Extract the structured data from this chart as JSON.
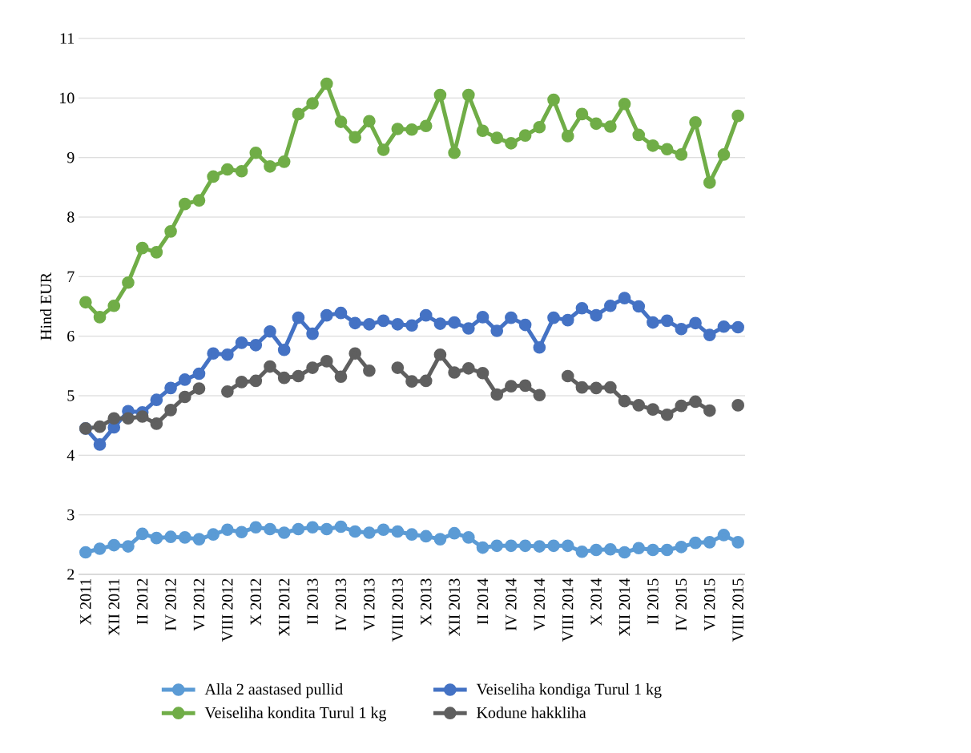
{
  "chart_data": {
    "type": "line",
    "ylabel": "Hind EUR",
    "categories": [
      "X 2011",
      null,
      "XII 2011",
      null,
      "II 2012",
      null,
      "IV 2012",
      null,
      "VI 2012",
      null,
      "VIII 2012",
      null,
      "X 2012",
      null,
      "XII 2012",
      null,
      "II 2013",
      null,
      "IV 2013",
      null,
      "VI 2013",
      null,
      "VIII 2013",
      null,
      "X 2013",
      null,
      "XII 2013",
      null,
      "II 2014",
      null,
      "IV 2014",
      null,
      "VI 2014",
      null,
      "VIII 2014",
      null,
      "X 2014",
      null,
      "XII 2014",
      null,
      "II 2015",
      null,
      "IV 2015",
      null,
      "VI 2015",
      null,
      "VIII 2015"
    ],
    "series": [
      {
        "name": "Alla 2 aastased pullid",
        "color": "#5b9bd5",
        "values": [
          2.37,
          2.43,
          2.49,
          2.47,
          2.68,
          2.61,
          2.63,
          2.62,
          2.59,
          2.67,
          2.75,
          2.71,
          2.79,
          2.76,
          2.7,
          2.76,
          2.79,
          2.76,
          2.8,
          2.72,
          2.7,
          2.75,
          2.72,
          2.67,
          2.64,
          2.59,
          2.69,
          2.62,
          2.45,
          2.48,
          2.48,
          2.48,
          2.47,
          2.48,
          2.48,
          2.38,
          2.41,
          2.42,
          2.37,
          2.44,
          2.41,
          2.41,
          2.46,
          2.53,
          2.54,
          2.66,
          2.54
        ]
      },
      {
        "name": "Veiseliha kondiga Turul 1 kg",
        "color": "#4472c4",
        "values": [
          4.45,
          4.18,
          4.47,
          4.74,
          4.72,
          4.93,
          5.13,
          5.27,
          5.37,
          5.71,
          5.69,
          5.89,
          5.85,
          6.08,
          5.77,
          6.31,
          6.04,
          6.35,
          6.39,
          6.22,
          6.2,
          6.26,
          6.2,
          6.18,
          6.35,
          6.21,
          6.23,
          6.13,
          6.32,
          6.09,
          6.31,
          6.19,
          5.81,
          6.31,
          6.27,
          6.47,
          6.35,
          6.51,
          6.64,
          6.5,
          6.23,
          6.26,
          6.12,
          6.22,
          6.02,
          6.16,
          6.15
        ]
      },
      {
        "name": "Veiseliha kondita Turul 1 kg",
        "color": "#70ad47",
        "values": [
          6.57,
          6.32,
          6.51,
          6.9,
          7.48,
          7.41,
          7.76,
          8.22,
          8.28,
          8.68,
          8.8,
          8.77,
          9.08,
          8.85,
          8.93,
          9.73,
          9.91,
          10.24,
          9.6,
          9.34,
          9.61,
          9.13,
          9.48,
          9.47,
          9.53,
          10.05,
          9.08,
          10.05,
          9.45,
          9.33,
          9.24,
          9.37,
          9.51,
          9.97,
          9.36,
          9.73,
          9.57,
          9.52,
          9.9,
          9.38,
          9.2,
          9.14,
          9.05,
          9.59,
          8.58,
          9.05,
          9.7
        ]
      },
      {
        "name": "Kodune hakkliha",
        "color": "#5f5f5f",
        "values": [
          4.45,
          4.48,
          4.62,
          4.62,
          4.65,
          4.53,
          4.76,
          4.98,
          5.12,
          null,
          5.07,
          5.23,
          5.25,
          5.49,
          5.3,
          5.33,
          5.47,
          5.58,
          5.32,
          5.71,
          5.42,
          null,
          5.47,
          5.24,
          5.25,
          5.69,
          5.39,
          5.46,
          5.38,
          5.02,
          5.16,
          5.17,
          5.01,
          null,
          5.33,
          5.14,
          5.13,
          5.14,
          4.91,
          4.84,
          4.77,
          4.68,
          4.83,
          4.9,
          4.75,
          null,
          4.84
        ]
      }
    ],
    "ylim": [
      2,
      11
    ],
    "yticks": [
      2,
      3,
      4,
      5,
      6,
      7,
      8,
      9,
      10,
      11
    ],
    "grid": "y",
    "legend": "bottom",
    "marker": "circle",
    "line_style": "solid"
  }
}
